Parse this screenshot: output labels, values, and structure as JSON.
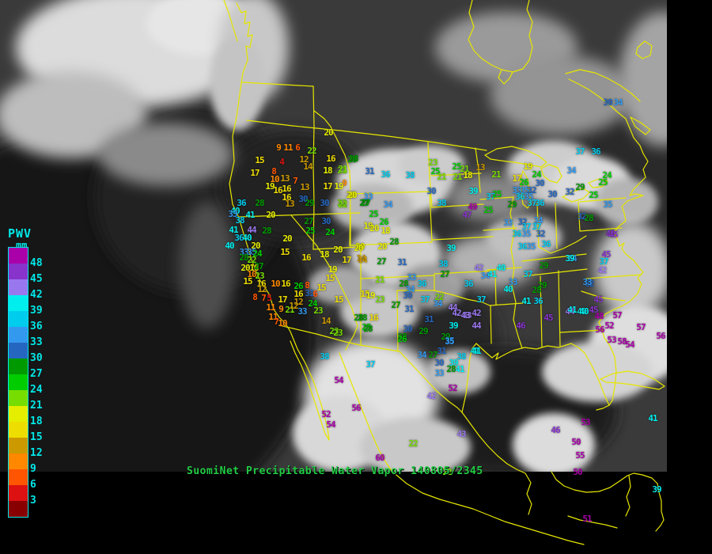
{
  "map": {
    "caption": "SuomiNet Precipitable Water Vapor 140805/2345",
    "caption_color": "#22cc44",
    "border_color": "#e6e600"
  },
  "legend": {
    "title": "PWV",
    "unit": "mm",
    "labels": [
      48,
      45,
      42,
      39,
      36,
      33,
      30,
      27,
      24,
      21,
      18,
      15,
      12,
      9,
      6,
      3
    ],
    "label_color": "#00e8e8",
    "border_color": "#00e8e8",
    "colors_low_to_high": [
      "#880000",
      "#dd1111",
      "#ff5500",
      "#ff8800",
      "#cc9900",
      "#eedd00",
      "#e6ee00",
      "#77dd00",
      "#00cc00",
      "#009900",
      "#2567c0",
      "#3399ee",
      "#00ccee",
      "#00eeee",
      "#9977ee",
      "#8833cc",
      "#aa00aa"
    ],
    "bin_size": 3
  },
  "stations": [
    [
      415,
      168,
      20
    ],
    [
      352,
      187,
      9
    ],
    [
      364,
      187,
      11
    ],
    [
      376,
      187,
      6
    ],
    [
      394,
      191,
      22
    ],
    [
      328,
      203,
      15
    ],
    [
      356,
      205,
      4
    ],
    [
      384,
      202,
      12
    ],
    [
      418,
      201,
      16
    ],
    [
      447,
      201,
      28
    ],
    [
      322,
      219,
      17
    ],
    [
      346,
      217,
      8
    ],
    [
      389,
      211,
      14
    ],
    [
      414,
      216,
      18
    ],
    [
      432,
      216,
      21
    ],
    [
      347,
      227,
      10
    ],
    [
      360,
      226,
      13
    ],
    [
      373,
      229,
      7
    ],
    [
      341,
      236,
      19
    ],
    [
      351,
      241,
      16
    ],
    [
      362,
      239,
      16
    ],
    [
      385,
      237,
      13
    ],
    [
      414,
      236,
      17
    ],
    [
      428,
      236,
      19
    ],
    [
      362,
      250,
      16
    ],
    [
      366,
      258,
      13
    ],
    [
      383,
      252,
      30
    ],
    [
      391,
      257,
      29
    ],
    [
      410,
      257,
      30
    ],
    [
      432,
      257,
      22
    ],
    [
      443,
      247,
      20
    ],
    [
      460,
      257,
      27
    ],
    [
      328,
      257,
      28
    ],
    [
      305,
      257,
      36
    ],
    [
      297,
      267,
      40
    ],
    [
      294,
      271,
      33
    ],
    [
      303,
      279,
      38
    ],
    [
      316,
      272,
      41
    ],
    [
      342,
      272,
      20
    ],
    [
      295,
      291,
      41
    ],
    [
      318,
      291,
      44
    ],
    [
      337,
      292,
      28
    ],
    [
      302,
      301,
      36
    ],
    [
      312,
      301,
      40
    ],
    [
      290,
      311,
      40
    ],
    [
      323,
      311,
      20
    ],
    [
      308,
      319,
      33
    ],
    [
      318,
      319,
      35
    ],
    [
      325,
      321,
      24
    ],
    [
      308,
      326,
      28
    ],
    [
      318,
      329,
      22
    ],
    [
      310,
      339,
      20
    ],
    [
      321,
      339,
      18
    ],
    [
      327,
      337,
      27
    ],
    [
      318,
      347,
      10
    ],
    [
      328,
      349,
      23
    ],
    [
      313,
      356,
      15
    ],
    [
      363,
      302,
      20
    ],
    [
      360,
      319,
      15
    ],
    [
      392,
      292,
      25
    ],
    [
      417,
      294,
      24
    ],
    [
      390,
      280,
      27
    ],
    [
      412,
      280,
      30
    ],
    [
      427,
      316,
      20
    ],
    [
      455,
      312,
      20
    ],
    [
      387,
      326,
      16
    ],
    [
      410,
      322,
      18
    ],
    [
      438,
      329,
      17
    ],
    [
      456,
      327,
      14
    ],
    [
      420,
      341,
      19
    ],
    [
      417,
      352,
      15
    ],
    [
      330,
      359,
      16
    ],
    [
      348,
      359,
      10
    ],
    [
      361,
      359,
      16
    ],
    [
      377,
      362,
      26
    ],
    [
      388,
      361,
      8
    ],
    [
      406,
      364,
      15
    ],
    [
      331,
      366,
      12
    ],
    [
      377,
      372,
      16
    ],
    [
      391,
      371,
      31
    ],
    [
      398,
      372,
      6
    ],
    [
      322,
      376,
      8
    ],
    [
      333,
      377,
      7
    ],
    [
      340,
      377,
      5
    ],
    [
      357,
      379,
      17
    ],
    [
      377,
      382,
      12
    ],
    [
      395,
      384,
      24
    ],
    [
      428,
      379,
      15
    ],
    [
      342,
      389,
      11
    ],
    [
      355,
      391,
      9
    ],
    [
      366,
      392,
      21
    ],
    [
      371,
      387,
      12
    ],
    [
      382,
      394,
      33
    ],
    [
      402,
      393,
      23
    ],
    [
      412,
      406,
      14
    ],
    [
      453,
      402,
      28
    ],
    [
      422,
      419,
      23
    ],
    [
      463,
      414,
      25
    ],
    [
      345,
      401,
      11
    ],
    [
      349,
      407,
      7
    ],
    [
      357,
      409,
      10
    ],
    [
      461,
      372,
      15
    ],
    [
      445,
      202,
      28
    ],
    [
      433,
      214,
      21
    ],
    [
      467,
      217,
      31
    ],
    [
      487,
      221,
      36
    ],
    [
      518,
      222,
      38
    ],
    [
      547,
      206,
      23
    ],
    [
      550,
      217,
      25
    ],
    [
      558,
      224,
      21
    ],
    [
      577,
      211,
      25
    ],
    [
      587,
      214,
      21
    ],
    [
      607,
      212,
      13
    ],
    [
      578,
      224,
      21
    ],
    [
      591,
      222,
      18
    ],
    [
      435,
      232,
      9
    ],
    [
      445,
      247,
      20
    ],
    [
      465,
      249,
      33
    ],
    [
      433,
      259,
      22
    ],
    [
      462,
      257,
      27
    ],
    [
      490,
      259,
      34
    ],
    [
      545,
      242,
      30
    ],
    [
      558,
      257,
      38
    ],
    [
      472,
      271,
      25
    ],
    [
      485,
      281,
      26
    ],
    [
      465,
      286,
      19
    ],
    [
      473,
      289,
      20
    ],
    [
      487,
      292,
      18
    ],
    [
      598,
      242,
      39
    ],
    [
      597,
      262,
      49
    ],
    [
      590,
      272,
      47
    ],
    [
      627,
      221,
      21
    ],
    [
      667,
      211,
      19
    ],
    [
      678,
      221,
      24
    ],
    [
      653,
      226,
      17
    ],
    [
      662,
      231,
      26
    ],
    [
      682,
      232,
      30
    ],
    [
      653,
      241,
      33
    ],
    [
      663,
      241,
      35
    ],
    [
      672,
      241,
      32
    ],
    [
      698,
      246,
      30
    ],
    [
      657,
      249,
      36
    ],
    [
      668,
      249,
      35
    ],
    [
      672,
      257,
      37
    ],
    [
      682,
      257,
      36
    ],
    [
      620,
      249,
      37
    ],
    [
      628,
      246,
      25
    ],
    [
      647,
      259,
      29
    ],
    [
      617,
      266,
      25
    ],
    [
      733,
      237,
      29
    ],
    [
      720,
      243,
      32
    ],
    [
      733,
      192,
      37
    ],
    [
      753,
      192,
      36
    ],
    [
      722,
      216,
      34
    ],
    [
      767,
      222,
      24
    ],
    [
      762,
      231,
      25
    ],
    [
      750,
      247,
      25
    ],
    [
      768,
      259,
      35
    ],
    [
      735,
      274,
      32
    ],
    [
      744,
      276,
      28
    ],
    [
      642,
      282,
      33
    ],
    [
      660,
      281,
      32
    ],
    [
      680,
      279,
      34
    ],
    [
      665,
      287,
      37
    ],
    [
      678,
      287,
      37
    ],
    [
      653,
      296,
      36
    ],
    [
      665,
      296,
      35
    ],
    [
      683,
      296,
      32
    ],
    [
      771,
      296,
      45
    ],
    [
      768,
      130,
      30
    ],
    [
      781,
      130,
      34
    ],
    [
      775,
      297,
      45
    ],
    [
      723,
      327,
      34
    ],
    [
      766,
      322,
      45
    ],
    [
      763,
      331,
      37
    ],
    [
      761,
      342,
      42
    ],
    [
      745,
      359,
      32
    ],
    [
      756,
      379,
      45
    ],
    [
      720,
      394,
      44
    ],
    [
      735,
      394,
      40
    ],
    [
      750,
      392,
      45
    ],
    [
      757,
      400,
      48
    ],
    [
      780,
      399,
      57
    ],
    [
      758,
      417,
      56
    ],
    [
      770,
      412,
      52
    ],
    [
      773,
      430,
      53
    ],
    [
      786,
      432,
      58
    ],
    [
      796,
      436,
      54
    ],
    [
      810,
      414,
      57
    ],
    [
      835,
      425,
      56
    ],
    [
      660,
      312,
      36
    ],
    [
      671,
      312,
      35
    ],
    [
      690,
      309,
      36
    ],
    [
      720,
      327,
      39
    ],
    [
      605,
      339,
      42
    ],
    [
      633,
      339,
      40
    ],
    [
      613,
      349,
      34
    ],
    [
      622,
      347,
      41
    ],
    [
      687,
      336,
      29
    ],
    [
      667,
      347,
      37
    ],
    [
      648,
      357,
      33
    ],
    [
      592,
      359,
      36
    ],
    [
      642,
      366,
      40
    ],
    [
      685,
      361,
      29
    ],
    [
      678,
      367,
      28
    ],
    [
      665,
      381,
      41
    ],
    [
      680,
      381,
      36
    ],
    [
      608,
      379,
      37
    ],
    [
      602,
      396,
      42
    ],
    [
      590,
      399,
      43
    ],
    [
      602,
      412,
      44
    ],
    [
      723,
      392,
      41
    ],
    [
      738,
      394,
      40
    ],
    [
      693,
      402,
      45
    ],
    [
      658,
      412,
      46
    ],
    [
      600,
      444,
      41
    ],
    [
      742,
      357,
      33
    ],
    [
      453,
      314,
      20
    ],
    [
      458,
      329,
      14
    ],
    [
      483,
      312,
      20
    ],
    [
      498,
      306,
      28
    ],
    [
      482,
      331,
      27
    ],
    [
      508,
      332,
      31
    ],
    [
      570,
      314,
      39
    ],
    [
      560,
      334,
      38
    ],
    [
      562,
      347,
      27
    ],
    [
      480,
      354,
      21
    ],
    [
      520,
      351,
      33
    ],
    [
      510,
      359,
      28
    ],
    [
      533,
      359,
      36
    ],
    [
      518,
      366,
      34
    ],
    [
      515,
      374,
      30
    ],
    [
      468,
      374,
      19
    ],
    [
      480,
      379,
      23
    ],
    [
      537,
      379,
      37
    ],
    [
      555,
      376,
      22
    ],
    [
      500,
      386,
      27
    ],
    [
      553,
      384,
      34
    ],
    [
      517,
      391,
      31
    ],
    [
      572,
      389,
      44
    ],
    [
      577,
      396,
      42
    ],
    [
      588,
      399,
      43
    ],
    [
      458,
      402,
      28
    ],
    [
      472,
      402,
      16
    ],
    [
      465,
      416,
      28
    ],
    [
      542,
      404,
      31
    ],
    [
      515,
      416,
      30
    ],
    [
      535,
      419,
      29
    ],
    [
      508,
      426,
      28
    ],
    [
      573,
      412,
      39
    ],
    [
      563,
      426,
      29
    ],
    [
      568,
      431,
      35
    ],
    [
      508,
      429,
      26
    ],
    [
      568,
      432,
      35
    ],
    [
      533,
      449,
      34
    ],
    [
      547,
      449,
      27
    ],
    [
      558,
      444,
      31
    ],
    [
      602,
      444,
      41
    ],
    [
      583,
      451,
      38
    ],
    [
      555,
      459,
      30
    ],
    [
      573,
      459,
      39
    ],
    [
      570,
      467,
      28
    ],
    [
      581,
      467,
      41
    ],
    [
      555,
      472,
      33
    ],
    [
      572,
      491,
      52
    ],
    [
      545,
      501,
      42
    ],
    [
      583,
      549,
      43
    ],
    [
      522,
      561,
      22
    ],
    [
      480,
      579,
      60
    ],
    [
      410,
      451,
      38
    ],
    [
      468,
      461,
      37
    ],
    [
      428,
      481,
      54
    ],
    [
      450,
      516,
      56
    ],
    [
      412,
      524,
      52
    ],
    [
      418,
      537,
      54
    ],
    [
      427,
      421,
      23
    ],
    [
      702,
      544,
      46
    ],
    [
      728,
      559,
      50
    ],
    [
      733,
      576,
      55
    ],
    [
      730,
      597,
      50
    ],
    [
      740,
      534,
      53
    ],
    [
      825,
      529,
      41
    ],
    [
      830,
      619,
      39
    ],
    [
      742,
      656,
      51
    ],
    [
      565,
      597,
      22
    ]
  ]
}
